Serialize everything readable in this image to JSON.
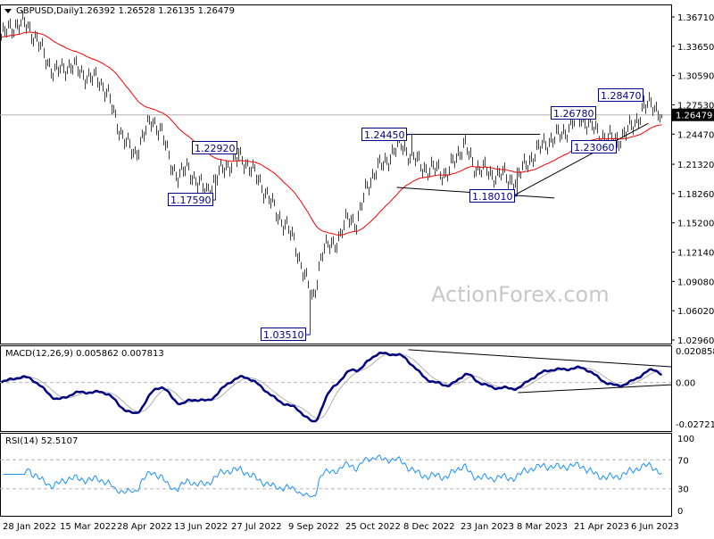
{
  "header": {
    "symbol": "GBPUSD,Daily",
    "ohlc": "1.26392 1.26528 1.26135 1.26479"
  },
  "watermark": "ActionForex.com",
  "chart_data": [
    {
      "type": "bar",
      "title": "GBPUSD,Daily",
      "price_axis_ticks": [
        "1.36710",
        "1.33650",
        "1.30590",
        "1.27530",
        "1.24470",
        "1.21320",
        "1.18260",
        "1.15200",
        "1.12140",
        "1.09080",
        "1.06020",
        "1.02960"
      ],
      "ylim": [
        1.0296,
        1.3671
      ],
      "x_ticks": [
        "28 Jan 2022",
        "15 Mar 2022",
        "28 Apr 2022",
        "13 Jun 2022",
        "27 Jul 2022",
        "9 Sep 2022",
        "25 Oct 2022",
        "8 Dec 2022",
        "23 Jan 2023",
        "8 Mar 2023",
        "21 Apr 2023",
        "6 Jun 2023"
      ],
      "weekly_closes": [
        1.345,
        1.355,
        1.36,
        1.358,
        1.345,
        1.325,
        1.31,
        1.312,
        1.318,
        1.308,
        1.305,
        1.3,
        1.29,
        1.255,
        1.24,
        1.22,
        1.245,
        1.258,
        1.25,
        1.215,
        1.2,
        1.21,
        1.195,
        1.185,
        1.195,
        1.21,
        1.215,
        1.22,
        1.21,
        1.195,
        1.18,
        1.16,
        1.15,
        1.13,
        1.1,
        1.07,
        1.12,
        1.13,
        1.135,
        1.16,
        1.15,
        1.19,
        1.205,
        1.215,
        1.225,
        1.235,
        1.22,
        1.215,
        1.205,
        1.21,
        1.2,
        1.22,
        1.235,
        1.21,
        1.21,
        1.2,
        1.205,
        1.195,
        1.2,
        1.215,
        1.225,
        1.235,
        1.24,
        1.245,
        1.255,
        1.262,
        1.255,
        1.245,
        1.24,
        1.238,
        1.245,
        1.255,
        1.27,
        1.278,
        1.265
      ],
      "last_price": "1.26479",
      "moving_average_color": "#ff0000",
      "bar_color": "#1e4a66",
      "annotations": [
        {
          "label": "1.22920",
          "date": "1 Aug 2022",
          "price": 1.2292,
          "kind": "high"
        },
        {
          "label": "1.17590",
          "date": "14 Jul 2022",
          "price": 1.1759,
          "kind": "low"
        },
        {
          "label": "1.03510",
          "date": "26 Sep 2022",
          "price": 1.0351,
          "kind": "low"
        },
        {
          "label": "1.24450",
          "date": "14 Dec 2022",
          "price": 1.2445,
          "kind": "high"
        },
        {
          "label": "1.18010",
          "date": "8 Mar 2023",
          "price": 1.1801,
          "kind": "low"
        },
        {
          "label": "1.26780",
          "date": "26 Apr 2023",
          "price": 1.2678,
          "kind": "high"
        },
        {
          "label": "1.23060",
          "date": "25 May 2023",
          "price": 1.2306,
          "kind": "low"
        },
        {
          "label": "1.28470",
          "date": "16 Jun 2023",
          "price": 1.2847,
          "kind": "high"
        }
      ],
      "trendlines": [
        {
          "from": [
            "8 Dec 2022",
            1.2445
          ],
          "to": [
            "26 Mar 2023",
            1.2445
          ]
        },
        {
          "from": [
            "3 Dec 2022",
            1.189
          ],
          "to": [
            "6 Apr 2023",
            1.178
          ]
        },
        {
          "from": [
            "5 Mar 2023",
            1.1801
          ],
          "to": [
            "20 Jun 2023",
            1.256
          ]
        }
      ]
    },
    {
      "type": "line",
      "title": "MACD(12,26,9) 0.005862 0.007813",
      "axis_ticks": [
        "0.020858",
        "0.00",
        "-0.027213"
      ],
      "ylim": [
        -0.027213,
        0.020858
      ],
      "macd_color": "#000080",
      "signal_color": "#b0b0b0",
      "trendlines": [
        {
          "from": [
            "12 Dec 2022",
            0.0215
          ],
          "to": [
            "20 Jun 2023",
            0.0103
          ]
        },
        {
          "from": [
            "9 Mar 2023",
            -0.0067
          ],
          "to": [
            "20 Jun 2023",
            -0.0015
          ]
        }
      ]
    },
    {
      "type": "line",
      "title": "RSI(14) 52.5107",
      "axis_ticks": [
        "100",
        "70",
        "30",
        "0"
      ],
      "ylim": [
        0,
        100
      ],
      "levels": [
        70,
        30
      ],
      "color": "#1e90ff"
    }
  ]
}
